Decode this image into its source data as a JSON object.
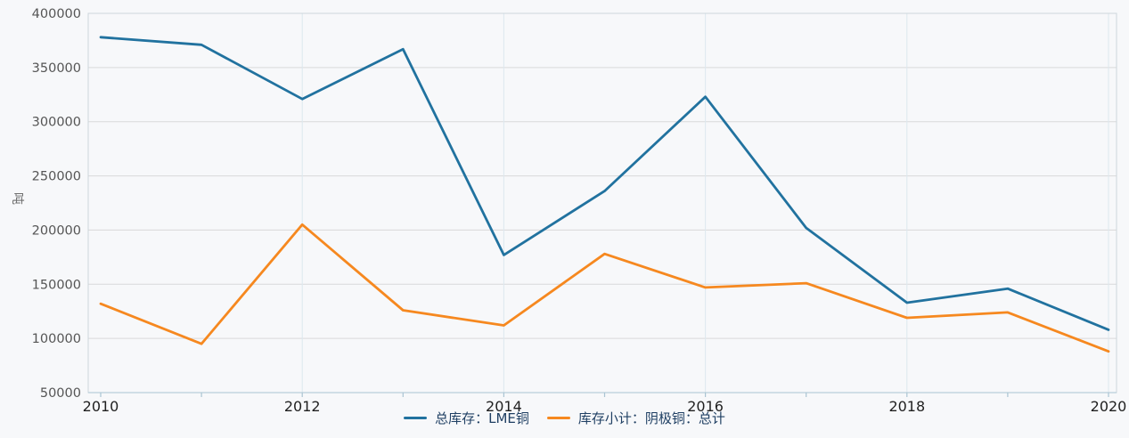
{
  "chart_data": {
    "type": "line",
    "title": "",
    "xlabel": "",
    "ylabel": "吨",
    "x": [
      2010,
      2011,
      2012,
      2013,
      2014,
      2015,
      2016,
      2017,
      2018,
      2019,
      2020
    ],
    "series": [
      {
        "name": "总库存：LME铜",
        "color": "#21729f",
        "values": [
          378000,
          371000,
          321000,
          367000,
          177000,
          236000,
          323000,
          202000,
          133000,
          146000,
          108000
        ]
      },
      {
        "name": "库存小计：阴极铜：总计",
        "color": "#f6881f",
        "values": [
          132000,
          95000,
          205000,
          126000,
          112000,
          178000,
          147000,
          151000,
          119000,
          124000,
          88000
        ]
      }
    ],
    "ylim": [
      50000,
      400000
    ],
    "ytick_step": 50000,
    "yticks": [
      50000,
      100000,
      150000,
      200000,
      250000,
      300000,
      350000,
      400000
    ],
    "xticks_labeled": [
      2010,
      2012,
      2014,
      2016,
      2018,
      2020
    ],
    "grid": true,
    "legend_position": "bottom"
  },
  "style": {
    "background": "#f7f8fa",
    "grid_color": "#d9d9d9",
    "vgrid_color": "#dde8ef",
    "border_color": "#cdd6dc",
    "axis_color": "#b9cdda",
    "tick_color": "#aac4d3",
    "ytick_label_color": "#555555",
    "xtick_label_color": "#1f1f1f",
    "legend_text_color": "#1f3f63",
    "ylabel_color": "#6e6e6e"
  }
}
